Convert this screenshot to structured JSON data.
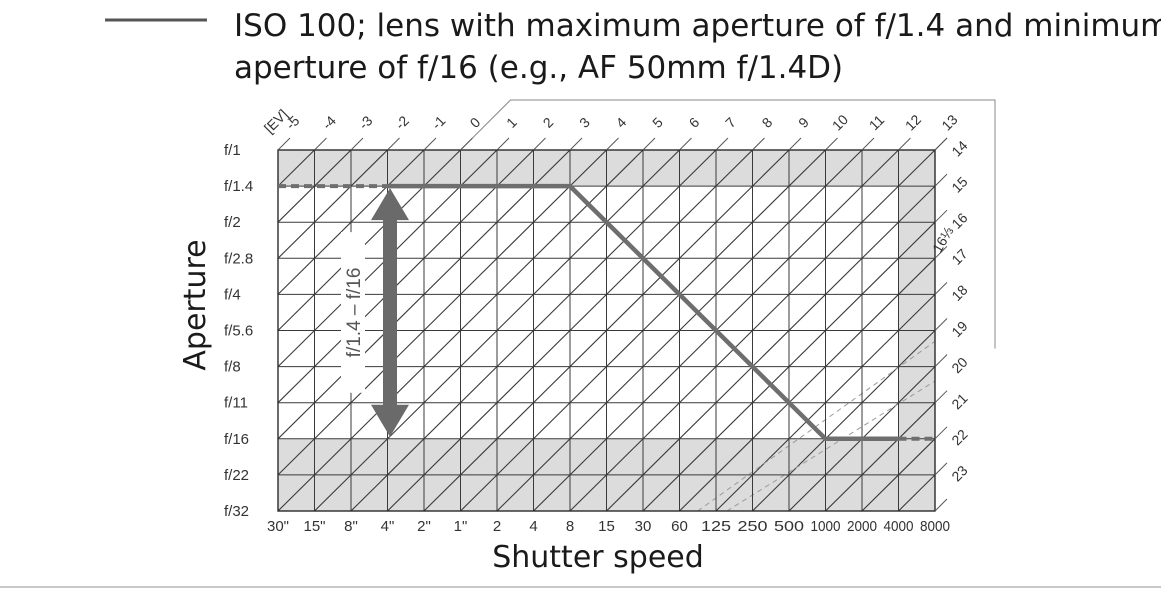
{
  "chart_data": {
    "type": "line",
    "title": "ISO 100; lens with maximum aperture of f/1.4 and minimum aperture of f/16 (e.g., AF 50mm f/1.4D)",
    "title_lines": [
      "ISO 100; lens with maximum aperture of f/1.4 and minimum",
      "aperture of f/16 (e.g., AF 50mm f/1.4D)"
    ],
    "xlabel": "Shutter speed",
    "ylabel": "Aperture",
    "x_ticks": [
      "30\"",
      "15\"",
      "8\"",
      "4\"",
      "2\"",
      "1\"",
      "2",
      "4",
      "8",
      "15",
      "30",
      "60",
      "125",
      "250",
      "500",
      "1000",
      "2000",
      "4000",
      "8000"
    ],
    "y_ticks": [
      "f/1",
      "f/1.4",
      "f/2",
      "f/2.8",
      "f/4",
      "f/5.6",
      "f/8",
      "f/11",
      "f/16",
      "f/22",
      "f/32"
    ],
    "ev_label": "[EV]",
    "ev_top": [
      "-5",
      "-4",
      "-3",
      "-2",
      "-1",
      "0",
      "1",
      "2",
      "3",
      "4",
      "5",
      "6",
      "7",
      "8",
      "9",
      "10",
      "11",
      "12",
      "13"
    ],
    "ev_right": [
      "14",
      "15",
      "16",
      "17",
      "18",
      "19",
      "20",
      "21",
      "22",
      "23"
    ],
    "ev_right_small": "16⅓",
    "series": [
      {
        "color": "#6e6e6e",
        "points": [
          {
            "x": "8",
            "y": "f/1.4"
          },
          {
            "x": "1000",
            "y": "f/16"
          }
        ],
        "solid_x_range": [
          "4\"",
          "4000"
        ],
        "dashed_extension_to": [
          "30\"",
          "8000"
        ]
      }
    ],
    "aperture_range_label": "f/1.4 – f/16",
    "aperture_range": [
      "f/1.4",
      "f/16"
    ],
    "shaded_rows": [
      "f/1",
      "f/22",
      "f/32"
    ],
    "shaded_col_right": [
      "8000"
    ],
    "grid": true,
    "legend_position": "top-left",
    "legend_line_color": "#555555"
  }
}
